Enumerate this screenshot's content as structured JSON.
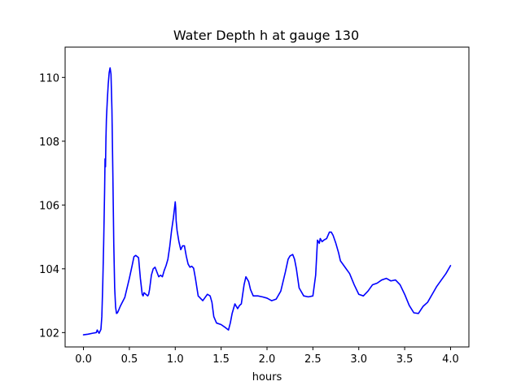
{
  "chart_data": {
    "type": "line",
    "title": "Water Depth h at gauge 130",
    "xlabel": "hours",
    "ylabel": "",
    "xlim": [
      -0.2,
      4.2
    ],
    "ylim": [
      101.55,
      110.95
    ],
    "xticks": [
      0.0,
      0.5,
      1.0,
      1.5,
      2.0,
      2.5,
      3.0,
      3.5,
      4.0
    ],
    "xtick_labels": [
      "0.0",
      "0.5",
      "1.0",
      "1.5",
      "2.0",
      "2.5",
      "3.0",
      "3.5",
      "4.0"
    ],
    "yticks": [
      102,
      104,
      106,
      108,
      110
    ],
    "ytick_labels": [
      "102",
      "104",
      "106",
      "108",
      "110"
    ],
    "grid": false,
    "colors": {
      "line": "#0000ff",
      "axes": "#000000",
      "background": "#ffffff"
    },
    "series": [
      {
        "x": [
          0.0,
          0.05,
          0.1,
          0.14,
          0.15,
          0.17,
          0.19,
          0.2,
          0.21,
          0.22,
          0.23,
          0.235,
          0.24,
          0.245,
          0.25,
          0.26,
          0.27,
          0.28,
          0.29,
          0.3,
          0.31,
          0.32,
          0.33,
          0.34,
          0.35,
          0.36,
          0.37,
          0.38,
          0.39,
          0.4,
          0.45,
          0.5,
          0.53,
          0.55,
          0.57,
          0.6,
          0.62,
          0.64,
          0.65,
          0.66,
          0.68,
          0.7,
          0.71,
          0.72,
          0.74,
          0.76,
          0.78,
          0.8,
          0.82,
          0.84,
          0.86,
          0.88,
          0.9,
          0.92,
          0.94,
          0.96,
          0.98,
          1.0,
          1.005,
          1.01,
          1.02,
          1.04,
          1.06,
          1.08,
          1.1,
          1.12,
          1.14,
          1.16,
          1.18,
          1.2,
          1.22,
          1.25,
          1.3,
          1.35,
          1.38,
          1.4,
          1.42,
          1.45,
          1.5,
          1.55,
          1.58,
          1.6,
          1.62,
          1.65,
          1.68,
          1.7,
          1.72,
          1.75,
          1.77,
          1.8,
          1.82,
          1.85,
          1.9,
          1.95,
          2.0,
          2.05,
          2.1,
          2.15,
          2.2,
          2.23,
          2.25,
          2.28,
          2.3,
          2.32,
          2.35,
          2.4,
          2.45,
          2.5,
          2.53,
          2.55,
          2.57,
          2.58,
          2.6,
          2.62,
          2.65,
          2.68,
          2.7,
          2.72,
          2.75,
          2.78,
          2.8,
          2.85,
          2.9,
          2.95,
          3.0,
          3.05,
          3.1,
          3.15,
          3.2,
          3.25,
          3.3,
          3.35,
          3.4,
          3.45,
          3.5,
          3.55,
          3.6,
          3.65,
          3.7,
          3.75,
          3.8,
          3.85,
          3.9,
          3.95,
          4.0
        ],
        "y": [
          101.93,
          101.95,
          101.98,
          102.0,
          102.08,
          101.98,
          102.1,
          102.5,
          103.5,
          104.8,
          106.4,
          107.45,
          107.2,
          108.1,
          108.7,
          109.3,
          109.8,
          110.15,
          110.3,
          110.1,
          109.0,
          107.0,
          104.8,
          103.4,
          102.8,
          102.6,
          102.62,
          102.68,
          102.75,
          102.82,
          103.1,
          103.7,
          104.1,
          104.38,
          104.42,
          104.35,
          103.7,
          103.2,
          103.15,
          103.25,
          103.2,
          103.15,
          103.2,
          103.35,
          103.8,
          104.0,
          104.05,
          103.9,
          103.75,
          103.8,
          103.75,
          103.95,
          104.1,
          104.3,
          104.7,
          105.2,
          105.6,
          106.1,
          105.9,
          105.5,
          105.2,
          104.85,
          104.6,
          104.72,
          104.72,
          104.4,
          104.15,
          104.05,
          104.08,
          104.02,
          103.7,
          103.15,
          103.0,
          103.2,
          103.15,
          102.95,
          102.5,
          102.3,
          102.25,
          102.15,
          102.08,
          102.3,
          102.6,
          102.9,
          102.75,
          102.85,
          102.9,
          103.5,
          103.75,
          103.6,
          103.35,
          103.15,
          103.15,
          103.12,
          103.08,
          103.0,
          103.05,
          103.3,
          103.9,
          104.3,
          104.4,
          104.45,
          104.3,
          104.0,
          103.4,
          103.15,
          103.12,
          103.15,
          103.8,
          104.9,
          104.8,
          104.95,
          104.85,
          104.9,
          104.95,
          105.15,
          105.15,
          105.05,
          104.8,
          104.5,
          104.25,
          104.05,
          103.85,
          103.5,
          103.2,
          103.15,
          103.3,
          103.5,
          103.55,
          103.65,
          103.7,
          103.62,
          103.65,
          103.5,
          103.2,
          102.85,
          102.62,
          102.6,
          102.82,
          102.95,
          103.2,
          103.45,
          103.65,
          103.85,
          104.1
        ]
      }
    ]
  }
}
